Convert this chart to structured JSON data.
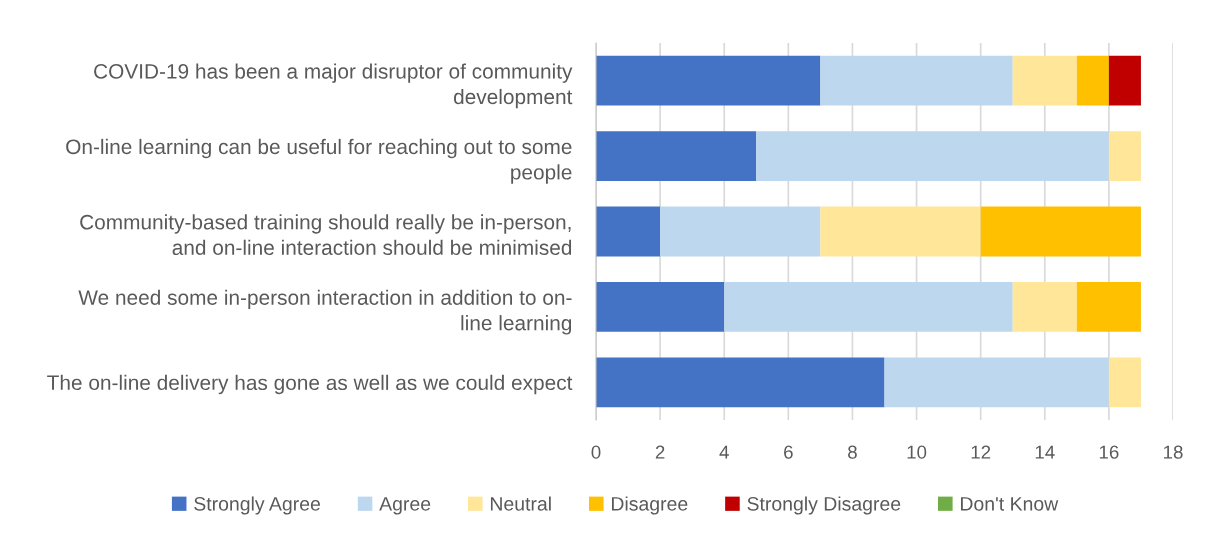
{
  "chart_data": {
    "type": "bar",
    "orientation": "horizontal",
    "stacked": true,
    "categories": [
      "COVID-19 has been a major disruptor of community\ndevelopment",
      "On-line learning can be useful for reaching out to some\npeople",
      "Community-based training should really be in-person,\nand on-line interaction should be minimised",
      "We need some in-person interaction in addition to on-\nline learning",
      "The on-line delivery has gone as well as we could expect"
    ],
    "series": [
      {
        "name": "Strongly Agree",
        "color": "#4472c4",
        "values": [
          7,
          5,
          2,
          4,
          9
        ]
      },
      {
        "name": "Agree",
        "color": "#bdd7ee",
        "values": [
          6,
          11,
          5,
          9,
          7
        ]
      },
      {
        "name": "Neutral",
        "color": "#ffe699",
        "values": [
          2,
          1,
          5,
          2,
          1
        ]
      },
      {
        "name": "Disagree",
        "color": "#ffc000",
        "values": [
          1,
          0,
          5,
          2,
          0
        ]
      },
      {
        "name": "Strongly Disagree",
        "color": "#c00000",
        "values": [
          1,
          0,
          0,
          0,
          0
        ]
      },
      {
        "name": "Don't Know",
        "color": "#70ad47",
        "values": [
          0,
          0,
          0,
          0,
          0
        ]
      }
    ],
    "xlim": [
      0,
      18
    ],
    "xticks": [
      0,
      2,
      4,
      6,
      8,
      10,
      12,
      14,
      16,
      18
    ],
    "grid": "x",
    "legend": "bottom"
  }
}
